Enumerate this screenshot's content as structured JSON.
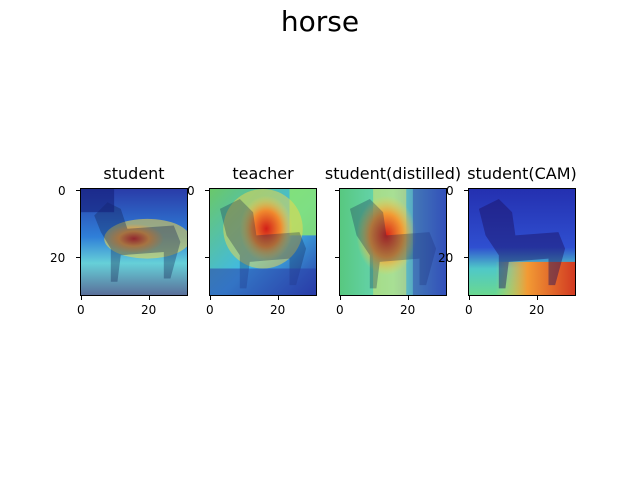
{
  "figure": {
    "title": "horse"
  },
  "panels": [
    {
      "title": "student",
      "colors": [
        "#1f2ea8",
        "#3fb9ff",
        "#ffcf4a",
        "#d83124",
        "#7ee06f"
      ]
    },
    {
      "title": "teacher",
      "colors": [
        "#1f2ea8",
        "#3fb9ff",
        "#ffcf4a",
        "#d83124",
        "#7ee06f"
      ]
    },
    {
      "title": "student(distilled)",
      "colors": [
        "#1f2ea8",
        "#3fb9ff",
        "#ffcf4a",
        "#d83124",
        "#7ee06f"
      ]
    },
    {
      "title": "student(CAM)",
      "colors": [
        "#1f2ea8",
        "#3fb9ff",
        "#ffcf4a",
        "#d83124",
        "#7ee06f"
      ]
    }
  ],
  "axes": {
    "x_ticks": [
      "0",
      "20"
    ],
    "y_ticks": [
      "0",
      "20"
    ]
  }
}
